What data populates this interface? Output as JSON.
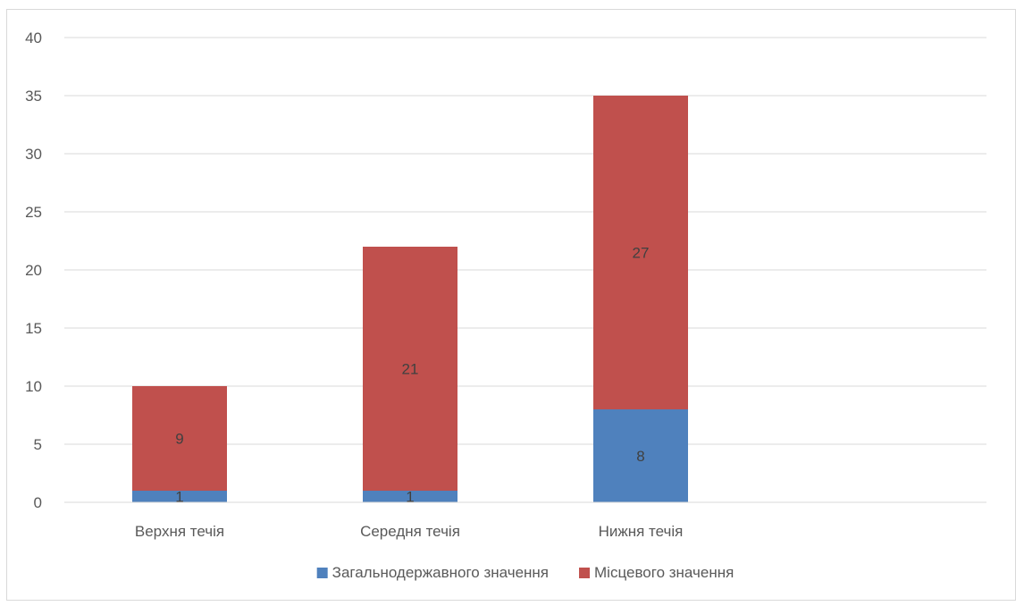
{
  "chart_data": {
    "type": "bar",
    "stacked": true,
    "categories": [
      "Верхня течія",
      "Середня течія",
      "Нижня течія",
      ""
    ],
    "series": [
      {
        "name": "Загальнодержавного значення",
        "values": [
          1,
          1,
          8,
          null
        ],
        "color": "#4f81bd"
      },
      {
        "name": "Місцевого значення",
        "values": [
          9,
          21,
          27,
          null
        ],
        "color": "#c0504d"
      }
    ],
    "ylim": [
      0,
      40
    ],
    "yticks": [
      0,
      5,
      10,
      15,
      20,
      25,
      30,
      35,
      40
    ],
    "grid": true,
    "legend_position": "bottom",
    "data_labels": true,
    "title": "",
    "xlabel": "",
    "ylabel": ""
  }
}
